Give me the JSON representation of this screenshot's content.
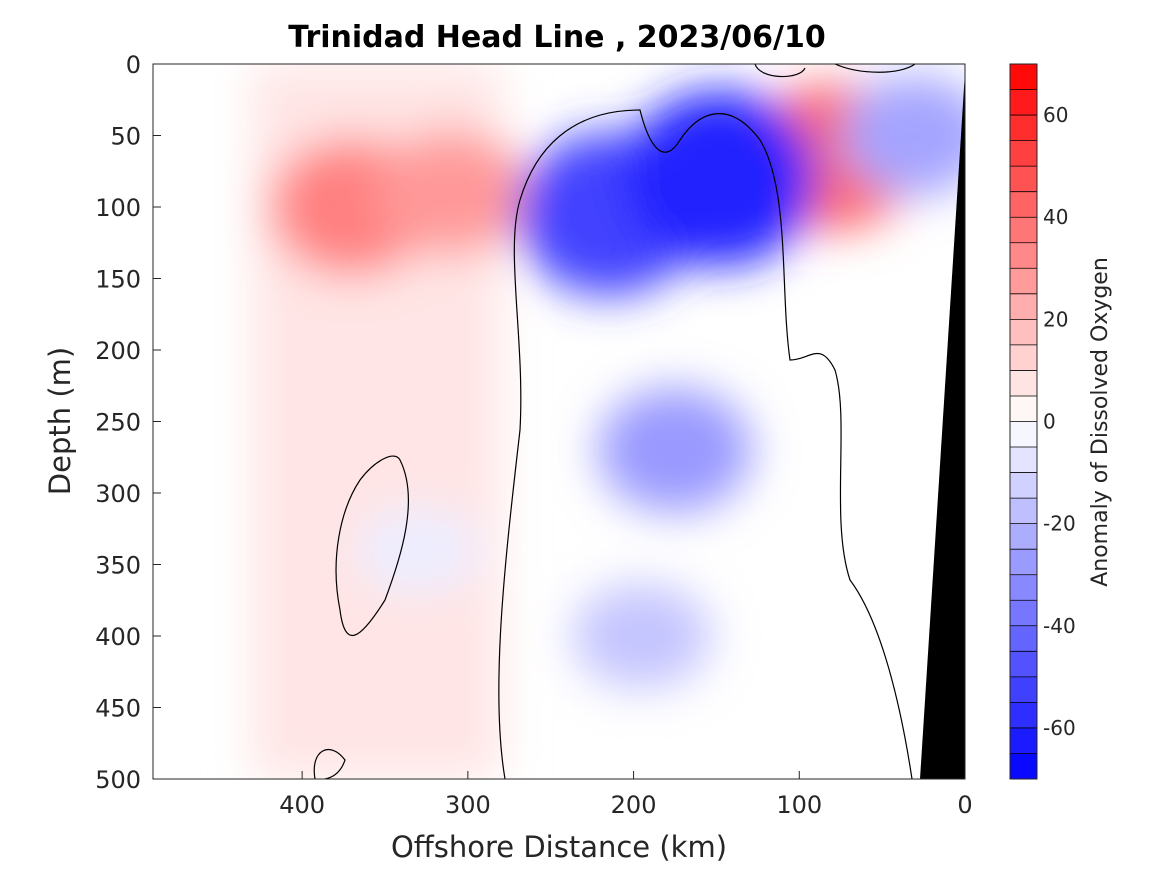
{
  "chart_data": {
    "type": "heatmap",
    "title": "Trinidad Head Line , 2023/06/10",
    "xlabel": "Offshore Distance (km)",
    "ylabel": "Depth (m)",
    "colorbar_label": "Anomaly of Dissolved Oxygen",
    "xlim": [
      490,
      0
    ],
    "ylim": [
      0,
      500
    ],
    "x_reversed": true,
    "y_reversed": true,
    "x_ticks": [
      400,
      300,
      200,
      100,
      0
    ],
    "y_ticks": [
      0,
      50,
      100,
      150,
      200,
      250,
      300,
      350,
      400,
      450,
      500
    ],
    "colorbar_range": [
      -70,
      70
    ],
    "colorbar_ticks": [
      60,
      40,
      20,
      0,
      -20,
      -40,
      -60
    ],
    "colorbar_levels": 28,
    "contour_zero_line": true,
    "data_extent_x": [
      430,
      0
    ],
    "bathymetry_fill": "black",
    "colormap": {
      "negative": "#0000ff",
      "zero": "#ffffff",
      "positive": "#ff0000"
    },
    "features": [
      {
        "x": 370,
        "depth": 100,
        "anomaly": 35
      },
      {
        "x": 310,
        "depth": 90,
        "anomaly": 28
      },
      {
        "x": 80,
        "depth": 65,
        "anomaly": 42
      },
      {
        "x": 215,
        "depth": 105,
        "anomaly": -52
      },
      {
        "x": 148,
        "depth": 80,
        "anomaly": -60
      },
      {
        "x": 175,
        "depth": 270,
        "anomaly": -28
      },
      {
        "x": 195,
        "depth": 400,
        "anomaly": -16
      },
      {
        "x": 330,
        "depth": 340,
        "anomaly": -5
      },
      {
        "x": 30,
        "depth": 50,
        "anomaly": -25
      }
    ]
  }
}
